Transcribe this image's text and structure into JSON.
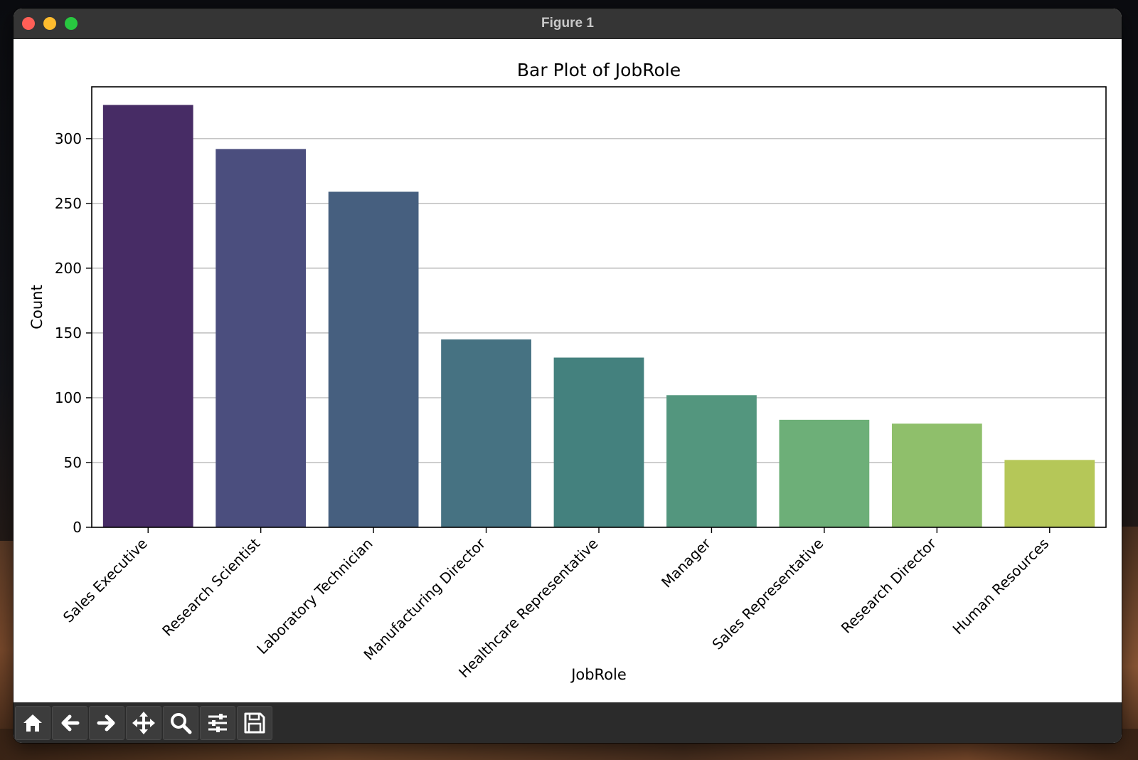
{
  "window": {
    "title": "Figure 1"
  },
  "toolbar": {
    "buttons": [
      {
        "name": "home",
        "icon": "home-icon"
      },
      {
        "name": "back",
        "icon": "arrow-left-icon"
      },
      {
        "name": "forward",
        "icon": "arrow-right-icon"
      },
      {
        "name": "pan",
        "icon": "move-icon"
      },
      {
        "name": "zoom",
        "icon": "magnifier-icon"
      },
      {
        "name": "configure",
        "icon": "sliders-icon"
      },
      {
        "name": "save",
        "icon": "floppy-disk-icon"
      }
    ]
  },
  "chart_data": {
    "type": "bar",
    "title": "Bar Plot of JobRole",
    "xlabel": "JobRole",
    "ylabel": "Count",
    "categories": [
      "Sales Executive",
      "Research Scientist",
      "Laboratory Technician",
      "Manufacturing Director",
      "Healthcare Representative",
      "Manager",
      "Sales Representative",
      "Research Director",
      "Human Resources"
    ],
    "values": [
      326,
      292,
      259,
      145,
      131,
      102,
      83,
      80,
      52
    ],
    "colors": [
      "#472c65",
      "#4b4e7e",
      "#465f7f",
      "#467282",
      "#44817e",
      "#53967e",
      "#6daf78",
      "#8fbf6b",
      "#b5c758"
    ],
    "ylim": [
      0,
      340
    ],
    "yticks": [
      0,
      50,
      100,
      150,
      200,
      250,
      300
    ],
    "grid": true,
    "grid_axis": "y"
  }
}
